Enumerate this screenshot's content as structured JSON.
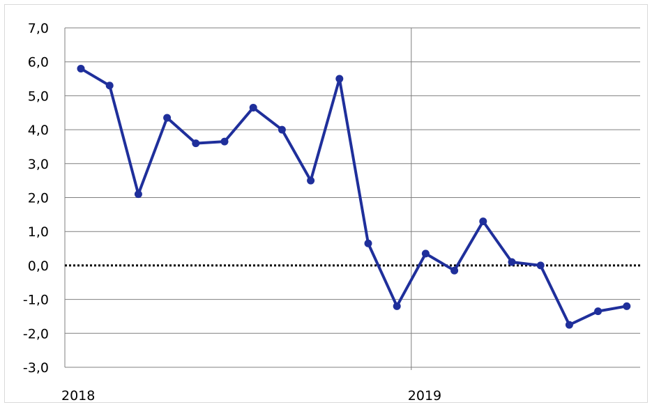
{
  "chart_data": {
    "type": "line",
    "title": "",
    "xlabel": "",
    "ylabel": "",
    "ylim": [
      -3.0,
      7.0
    ],
    "y_ticks": [
      "7,0",
      "6,0",
      "5,0",
      "4,0",
      "3,0",
      "2,0",
      "1,0",
      "0,0",
      "-1,0",
      "-2,0",
      "-3,0"
    ],
    "x_tick_labels": [
      "2018",
      "2019"
    ],
    "grid": true,
    "legend": "none",
    "reference_line": {
      "y": 0,
      "style": "dotted",
      "color": "#000000"
    },
    "year_divider": "2019",
    "colors": {
      "series": "#1f2f9b",
      "grid": "#7f7f7f",
      "reference": "#000000"
    },
    "series": [
      {
        "x": [
          "2018-01",
          "2018-02",
          "2018-03",
          "2018-04",
          "2018-05",
          "2018-06",
          "2018-07",
          "2018-08",
          "2018-09",
          "2018-10",
          "2018-11",
          "2018-12",
          "2019-01",
          "2019-02",
          "2019-03",
          "2019-04",
          "2019-05",
          "2019-06",
          "2019-07",
          "2019-08"
        ],
        "values": [
          5.8,
          5.3,
          2.1,
          4.35,
          3.6,
          3.65,
          4.65,
          4.0,
          2.5,
          5.5,
          0.65,
          -1.2,
          0.35,
          -0.15,
          1.3,
          0.1,
          0.0,
          -1.75,
          -1.35,
          -1.2
        ]
      }
    ]
  }
}
